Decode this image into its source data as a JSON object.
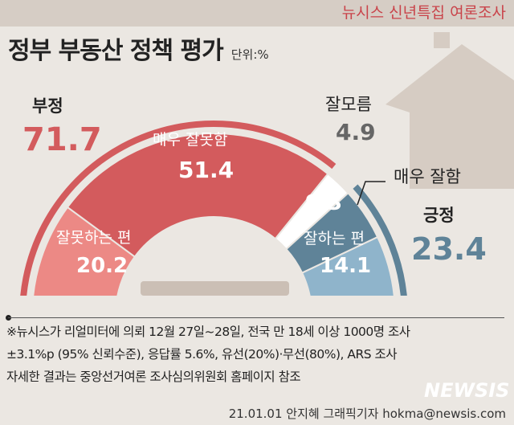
{
  "header": {
    "series_label": "뉴시스 신년특집 여론조사"
  },
  "title": "정부 부동산 정책 평가",
  "unit": "단위:%",
  "chart_data": {
    "type": "pie",
    "shape": "semi-donut",
    "title": "정부 부동산 정책 평가",
    "unit": "%",
    "slices": [
      {
        "label": "잘못하는 편",
        "value": 20.2,
        "color": "#ec8985"
      },
      {
        "label": "매우 잘못함",
        "value": 51.4,
        "color": "#d35b5d"
      },
      {
        "label": "잘모름",
        "value": 4.9,
        "color": "#ffffff"
      },
      {
        "label": "매우 잘함",
        "value": 9.3,
        "color": "#5f8398"
      },
      {
        "label": "잘하는 편",
        "value": 14.1,
        "color": "#8fb4cb"
      }
    ],
    "groups": [
      {
        "label": "부정",
        "value": "71.7",
        "color": "#d35b5d"
      },
      {
        "label": "긍정",
        "value": "23.4",
        "color": "#5f8398"
      }
    ],
    "display": {
      "s0": "20.2",
      "s1": "51.4",
      "s2": "4.9",
      "s3": "9.3",
      "s4": "14.1"
    }
  },
  "notes": [
    "※뉴시스가 리얼미터에 의뢰 12월 27일~28일, 전국 만 18세 이상 1000명 조사",
    "±3.1%p (95% 신뢰수준), 응답률 5.6%, 유선(20%)·무선(80%), ARS 조사",
    "자세한 결과는 중앙선거여론 조사심의위원회 홈페이지 참조"
  ],
  "credit": "21.01.01 안지혜 그래픽기자 hokma@newsis.com",
  "watermark": "NEWSIS"
}
